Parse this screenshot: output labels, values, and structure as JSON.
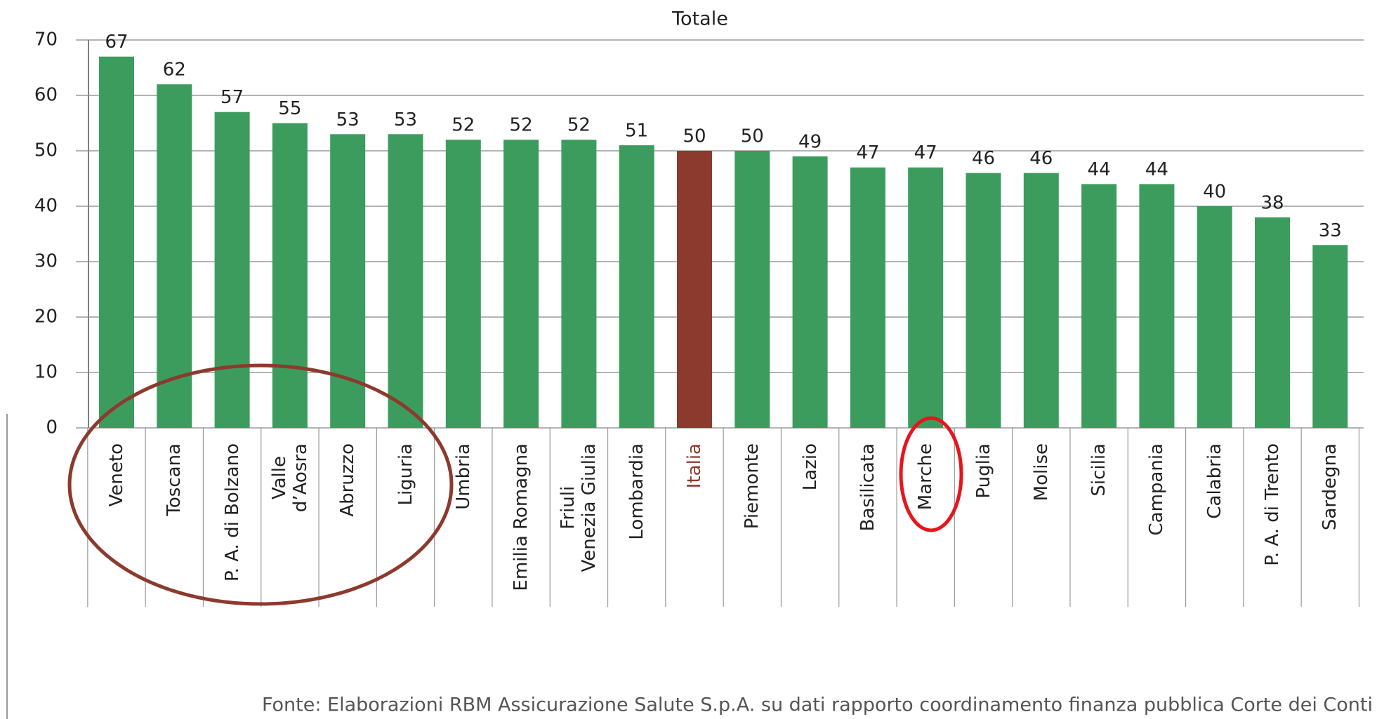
{
  "chart_data": {
    "type": "bar",
    "title": "Totale",
    "categories": [
      "Veneto",
      "Toscana",
      "P. A. di Bolzano",
      "Valle\nd’Aosra",
      "Abruzzo",
      "Liguria",
      "Umbria",
      "Emilia Romagna",
      "Friuli\nVenezia Giulia",
      "Lombardia",
      "Italia",
      "Piemonte",
      "Lazio",
      "Basilicata",
      "Marche",
      "Puglia",
      "Molise",
      "Sicilia",
      "Campania",
      "Calabria",
      "P. A. di Trento",
      "Sardegna"
    ],
    "values": [
      67,
      62,
      57,
      55,
      53,
      53,
      52,
      52,
      52,
      51,
      50,
      50,
      49,
      47,
      47,
      46,
      46,
      44,
      44,
      40,
      38,
      33
    ],
    "colors": [
      "#3c9c5e",
      "#3c9c5e",
      "#3c9c5e",
      "#3c9c5e",
      "#3c9c5e",
      "#3c9c5e",
      "#3c9c5e",
      "#3c9c5e",
      "#3c9c5e",
      "#3c9c5e",
      "#8c3a2e",
      "#3c9c5e",
      "#3c9c5e",
      "#3c9c5e",
      "#3c9c5e",
      "#3c9c5e",
      "#3c9c5e",
      "#3c9c5e",
      "#3c9c5e",
      "#3c9c5e",
      "#3c9c5e",
      "#3c9c5e"
    ],
    "ylim": [
      0,
      70
    ],
    "yticks": [
      0,
      10,
      20,
      30,
      40,
      50,
      60,
      70
    ],
    "grid": true,
    "source": "Fonte: Elaborazioni RBM Assicurazione Salute S.p.A. su dati rapporto coordinamento finanza pubblica Corte dei Conti"
  }
}
